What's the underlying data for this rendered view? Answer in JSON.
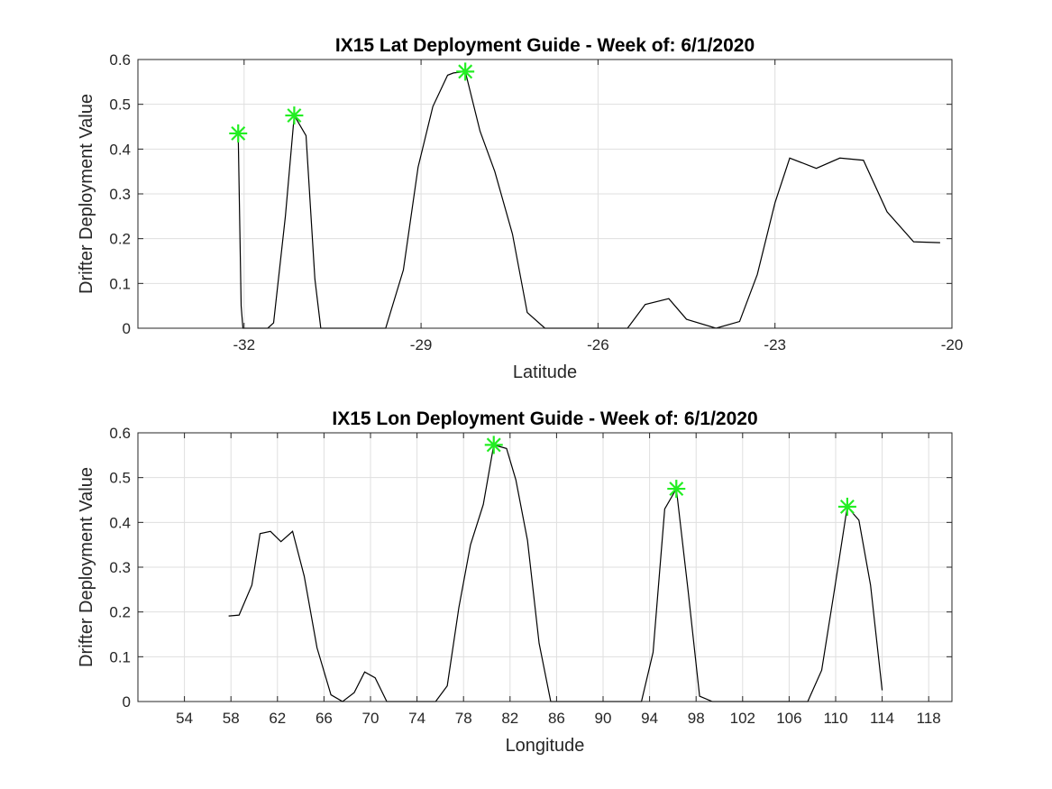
{
  "chart_data": [
    {
      "type": "line",
      "title": "IX15 Lat Deployment Guide - Week of: 6/1/2020",
      "xlabel": "Latitude",
      "ylabel": "Drifter Deployment Value",
      "xlim": [
        -33.8,
        -20
      ],
      "ylim": [
        0,
        0.6
      ],
      "xticks": [
        -32,
        -29,
        -26,
        -23,
        -20
      ],
      "yticks": [
        0,
        0.1,
        0.2,
        0.3,
        0.4,
        0.5,
        0.6
      ],
      "grid": true,
      "series": [
        {
          "x": [
            -32.1,
            -32.05,
            -32.02,
            -32.0,
            -31.6,
            -31.5,
            -31.3,
            -31.15,
            -30.95,
            -30.8,
            -30.7,
            -29.6,
            -29.3,
            -29.05,
            -28.8,
            -28.55,
            -28.45,
            -28.25,
            -28.0,
            -27.75,
            -27.45,
            -27.2,
            -26.9,
            -26.5,
            -26.1,
            -25.5,
            -25.2,
            -24.8,
            -24.5,
            -24.0,
            -23.6,
            -23.3,
            -23.0,
            -22.75,
            -22.3,
            -21.9,
            -21.5,
            -21.1,
            -20.65,
            -20.2
          ],
          "y": [
            0.435,
            0.05,
            0.0,
            0.0,
            0.0,
            0.012,
            0.25,
            0.475,
            0.43,
            0.11,
            0.0,
            0.0,
            0.13,
            0.36,
            0.495,
            0.565,
            0.57,
            0.573,
            0.44,
            0.35,
            0.21,
            0.035,
            0.0,
            0.0,
            0.0,
            0.0,
            0.053,
            0.066,
            0.02,
            0.0,
            0.015,
            0.12,
            0.28,
            0.38,
            0.357,
            0.38,
            0.375,
            0.26,
            0.193,
            0.191
          ]
        }
      ],
      "markers": [
        {
          "x": -32.1,
          "y": 0.435
        },
        {
          "x": -31.15,
          "y": 0.475
        },
        {
          "x": -28.25,
          "y": 0.573
        }
      ]
    },
    {
      "type": "line",
      "title": "IX15 Lon Deployment Guide - Week of: 6/1/2020",
      "xlabel": "Longitude",
      "ylabel": "Drifter Deployment Value",
      "xlim": [
        50,
        120
      ],
      "ylim": [
        0,
        0.6
      ],
      "xticks": [
        54,
        58,
        62,
        66,
        70,
        74,
        78,
        82,
        86,
        90,
        94,
        98,
        102,
        106,
        110,
        114,
        118
      ],
      "yticks": [
        0,
        0.1,
        0.2,
        0.3,
        0.4,
        0.5,
        0.6
      ],
      "grid": true,
      "series": [
        {
          "x": [
            57.8,
            58.7,
            59.8,
            60.5,
            61.4,
            62.3,
            63.3,
            64.3,
            65.4,
            66.6,
            67.6,
            68.6,
            69.5,
            70.4,
            71.4,
            72.5,
            74.5,
            75.6,
            76.6,
            77.6,
            78.6,
            79.7,
            80.6,
            81.7,
            82.5,
            83.5,
            84.5,
            85.5,
            86.5,
            88.0,
            90.0,
            91.5,
            93.3,
            94.3,
            95.3,
            96.3,
            97.3,
            98.3,
            99.4,
            100.5,
            102.0,
            104.0,
            106.0,
            107.6,
            108.8,
            109.9,
            111.0,
            112.0,
            113.0,
            114.0
          ],
          "y": [
            0.191,
            0.193,
            0.26,
            0.375,
            0.38,
            0.357,
            0.38,
            0.28,
            0.12,
            0.015,
            0.0,
            0.02,
            0.066,
            0.053,
            0.0,
            0.0,
            0.0,
            0.0,
            0.035,
            0.21,
            0.35,
            0.44,
            0.573,
            0.565,
            0.495,
            0.36,
            0.13,
            0.0,
            0.0,
            0.0,
            0.0,
            0.0,
            0.0,
            0.11,
            0.43,
            0.475,
            0.25,
            0.012,
            0.0,
            0.0,
            0.0,
            0.0,
            0.0,
            0.0,
            0.07,
            0.25,
            0.435,
            0.405,
            0.26,
            0.025
          ]
        }
      ],
      "markers": [
        {
          "x": 80.6,
          "y": 0.573
        },
        {
          "x": 96.3,
          "y": 0.475
        },
        {
          "x": 111.0,
          "y": 0.435
        }
      ]
    }
  ]
}
